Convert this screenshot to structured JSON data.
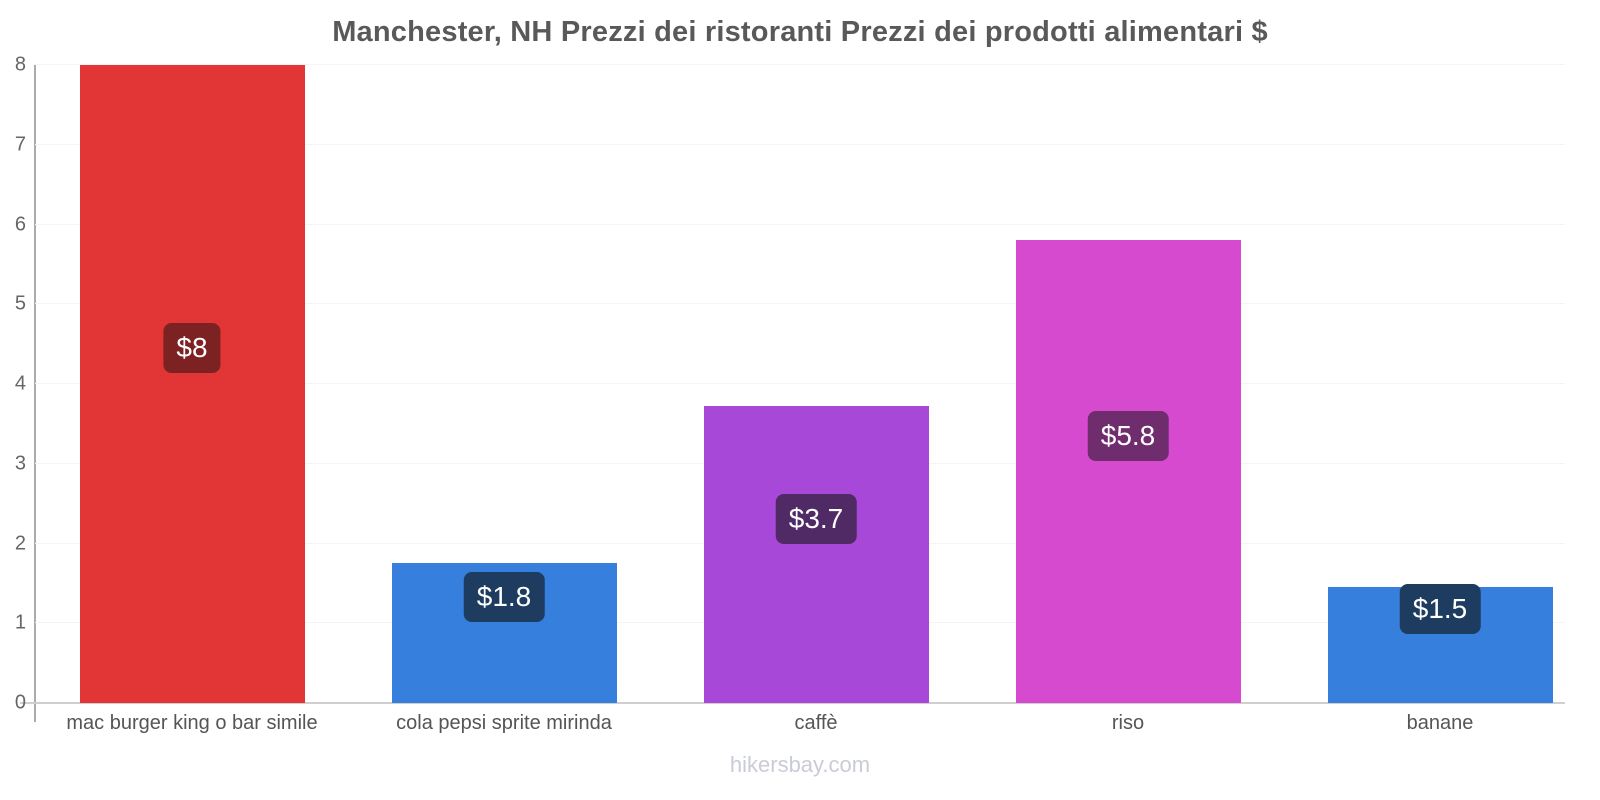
{
  "header": {
    "title": "Manchester, NH Prezzi dei ristoranti Prezzi dei prodotti alimentari $"
  },
  "footer": {
    "watermark": "hikersbay.com"
  },
  "chart_data": {
    "type": "bar",
    "title": "Manchester, NH Prezzi dei ristoranti Prezzi dei prodotti alimentari $",
    "xlabel": "",
    "ylabel": "",
    "currency": "$",
    "categories": [
      "mac burger king o bar simile",
      "cola pepsi sprite mirinda",
      "caffè",
      "riso",
      "banane"
    ],
    "values": [
      8,
      1.75,
      3.72,
      5.8,
      1.45
    ],
    "value_labels": [
      "$8",
      "$1.8",
      "$3.7",
      "$5.8",
      "$1.5"
    ],
    "bar_colors": [
      "#e23636",
      "#377fdc",
      "#a748d8",
      "#d54ace",
      "#377fdc"
    ],
    "badge_colors": [
      "#7c2223",
      "#1d3c60",
      "#4f2a65",
      "#702d6e",
      "#1d3c60"
    ],
    "ylim": [
      0,
      8
    ],
    "yticks": [
      0,
      1,
      2,
      3,
      4,
      5,
      6,
      7,
      8
    ],
    "grid": "horizontal-light",
    "legend_position": "none",
    "axis_colors": {
      "y_axis": "#ababab",
      "x_axis": "#cfcfcf",
      "gridline": "#f4f4f4"
    },
    "text_colors": {
      "title": "#58595b",
      "y_ticks": "#666666",
      "x_labels": "#555555",
      "watermark": "#c9ccd6"
    }
  }
}
